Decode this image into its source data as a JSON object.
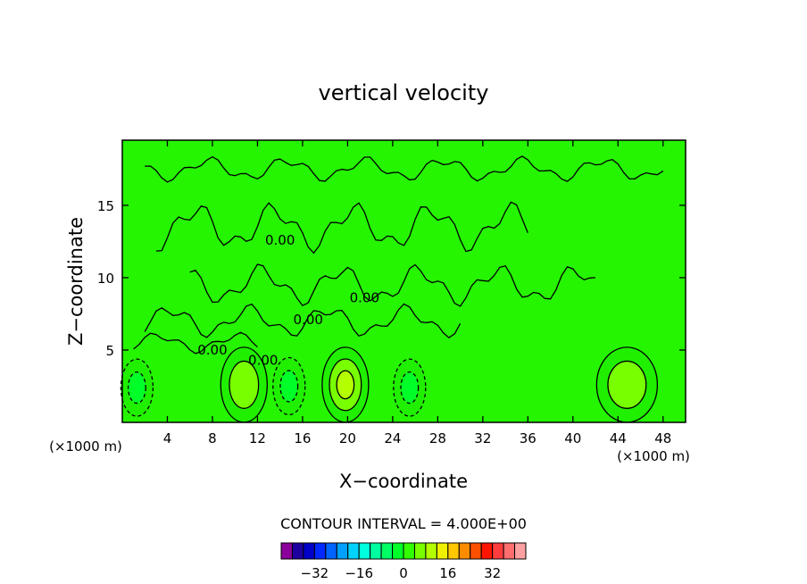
{
  "chart_data": {
    "type": "heatmap",
    "title": "vertical velocity",
    "xlabel": "X−coordinate",
    "ylabel": "Z−coordinate",
    "x_unit": "(×1000 m)",
    "z_unit": "(×1000 m)",
    "xlim": [
      0,
      50
    ],
    "ylim": [
      0,
      19.5
    ],
    "x_ticks": [
      4,
      8,
      12,
      16,
      20,
      24,
      28,
      32,
      36,
      40,
      44,
      48
    ],
    "y_ticks": [
      5,
      10,
      15
    ],
    "contour_interval_text": "CONTOUR INTERVAL = 4.000E+00",
    "contour_labels": [
      {
        "text": "0.00",
        "x": 14.0,
        "z": 12.6
      },
      {
        "text": "0.00",
        "x": 21.5,
        "z": 8.6
      },
      {
        "text": "0.00",
        "x": 16.5,
        "z": 7.1
      },
      {
        "text": "0.00",
        "x": 8.0,
        "z": 5.0
      },
      {
        "text": "0.00",
        "x": 12.5,
        "z": 4.3
      }
    ],
    "features": [
      {
        "kind": "updraft",
        "x": 19.8,
        "z": 2.6,
        "level": 8
      },
      {
        "kind": "updraft",
        "x": 10.8,
        "z": 2.6,
        "level": 6
      },
      {
        "kind": "updraft",
        "x": 44.8,
        "z": 2.6,
        "level": 6
      },
      {
        "kind": "downdraft",
        "x": 14.8,
        "z": 2.5,
        "level": -4
      },
      {
        "kind": "downdraft",
        "x": 25.5,
        "z": 2.4,
        "level": -4
      },
      {
        "kind": "downdraft",
        "x": 1.3,
        "z": 2.4,
        "level": -4
      }
    ],
    "colorbar": {
      "ticks": [
        "−32",
        "−16",
        "0",
        "16",
        "32"
      ],
      "tick_values": [
        -32,
        -16,
        0,
        16,
        32
      ],
      "colors": [
        "#8b009b",
        "#1e00a0",
        "#0000c8",
        "#0028ff",
        "#0064ff",
        "#00a0ff",
        "#00d2ff",
        "#00ffdc",
        "#00ffa0",
        "#00ff64",
        "#00ff28",
        "#32ff00",
        "#78ff00",
        "#b4ff00",
        "#f0f000",
        "#ffc800",
        "#ff8c00",
        "#ff5000",
        "#ff1400",
        "#ff3c3c",
        "#ff6e6e",
        "#ffa0a0"
      ]
    }
  }
}
